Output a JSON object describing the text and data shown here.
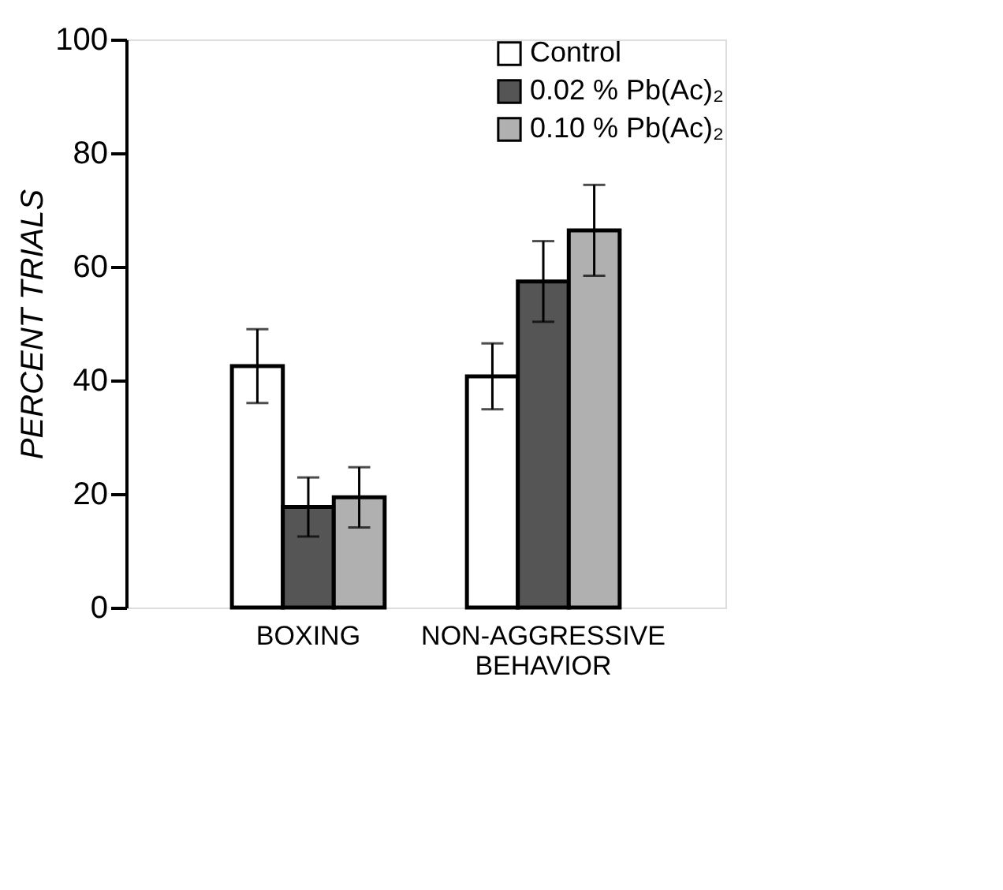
{
  "chart_data": {
    "type": "bar",
    "ylabel": "PERCENT TRIALS",
    "categories": [
      "BOXING",
      "NON-AGGRESSIVE BEHAVIOR"
    ],
    "series": [
      {
        "name": "Control",
        "color": "#ffffff",
        "values": [
          42.5,
          40.7
        ],
        "errors": [
          6.5,
          5.8
        ]
      },
      {
        "name": "0.02 % Pb(Ac)₂",
        "color": "#555555",
        "values": [
          17.7,
          57.4
        ],
        "errors": [
          5.2,
          7.1
        ]
      },
      {
        "name": "0.10 % Pb(Ac)₂",
        "color": "#b0b0b0",
        "values": [
          19.4,
          66.4
        ],
        "errors": [
          5.3,
          8.0
        ]
      }
    ],
    "ylim": [
      0,
      100
    ],
    "yticks": [
      0,
      20,
      40,
      60,
      80,
      100
    ],
    "grid": false,
    "legend": "top right"
  }
}
